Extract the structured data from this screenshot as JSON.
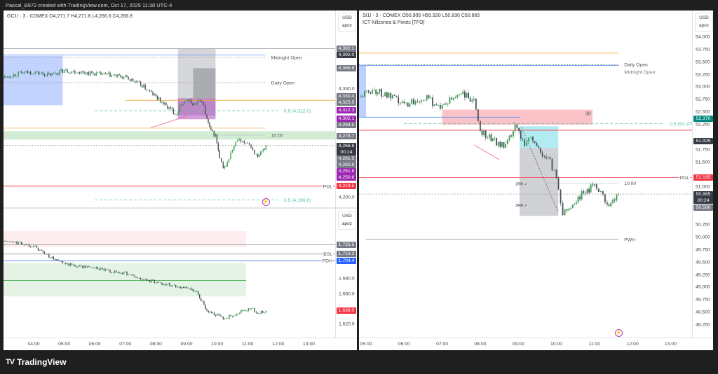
{
  "header": {
    "title": "Pascal_B972 created with TradingView.com, Oct 17, 2025 11:38 UTC-4"
  },
  "footer": {
    "brand": "TradingView"
  },
  "colors": {
    "up": "#2e9b4a",
    "down": "#4a4d57",
    "gray_tag": "#787b86",
    "dark_tag": "#363a45",
    "purple_tag": "#9c27b0",
    "red_tag": "#f23645",
    "blue_tag": "#2962ff",
    "teal_tag": "#00897b"
  },
  "chart_data": [
    {
      "id": "gc",
      "type": "candlestick",
      "timeframe": "3",
      "legend": "GC1! · 3 · COMEX  O4,271.7  H4,271.8  L4,266.6  C4,266.8",
      "currency": "USD",
      "unit": "apoz",
      "ylim": [
        4187.2,
        4441.5
      ],
      "yticks": [
        "4,380.0",
        "4,360.0",
        "4,340.0",
        "4,320.0",
        "4,300.0",
        "4,280.0",
        "4,260.0",
        "4,240.0",
        "4,220.0",
        "4,200.0"
      ],
      "close_series": [
        [
          "03:00",
          4355
        ],
        [
          "03:30",
          4360
        ],
        [
          "04:00",
          4362
        ],
        [
          "04:30",
          4358
        ],
        [
          "05:00",
          4364
        ],
        [
          "05:30",
          4362
        ],
        [
          "06:00",
          4360
        ],
        [
          "06:30",
          4358
        ],
        [
          "07:00",
          4355
        ],
        [
          "07:30",
          4346
        ],
        [
          "08:00",
          4330
        ],
        [
          "08:20",
          4318
        ],
        [
          "08:40",
          4308
        ],
        [
          "08:50",
          4322
        ],
        [
          "09:00",
          4326
        ],
        [
          "09:15",
          4320
        ],
        [
          "09:30",
          4326
        ],
        [
          "09:40",
          4300
        ],
        [
          "09:48",
          4285
        ],
        [
          "09:57",
          4280
        ],
        [
          "10:05",
          4250
        ],
        [
          "10:12",
          4236
        ],
        [
          "10:20",
          4245
        ],
        [
          "10:30",
          4262
        ],
        [
          "10:40",
          4274
        ],
        [
          "10:50",
          4270
        ],
        [
          "11:00",
          4272
        ],
        [
          "11:10",
          4262
        ],
        [
          "11:20",
          4250
        ],
        [
          "11:28",
          4258
        ],
        [
          "11:36",
          4266.8
        ]
      ],
      "boxes": [
        {
          "t1": "03:00",
          "t2": "04:57",
          "p1": 4383,
          "p2": 4319,
          "color": "rgba(41,98,255,0.28)"
        },
        {
          "t1": "08:43",
          "t2": "09:57",
          "p1": 4392,
          "p2": 4306,
          "color": "rgba(120,123,134,0.3)"
        },
        {
          "t1": "09:13",
          "t2": "09:57",
          "p1": 4367,
          "p2": 4328,
          "color": "rgba(90,93,104,0.35)"
        },
        {
          "t1": "08:43",
          "t2": "09:57",
          "p1": 4328,
          "p2": 4301,
          "color": "rgba(156,39,176,0.45)"
        },
        {
          "t1": null,
          "t2": null,
          "p1": 4285.6,
          "p2": 4274.7,
          "color": "rgba(76,175,80,0.25)"
        }
      ],
      "lines": [
        {
          "price": 4392.1,
          "t1": null,
          "t2": null,
          "color": "#9598a1",
          "dash": ""
        },
        {
          "price": 4384,
          "t1": "03:00",
          "t2": "11:35",
          "color": "#5b8ff9",
          "dash": ""
        },
        {
          "price": 4381,
          "t1": "03:00",
          "t2": "11:35",
          "color": "#999",
          "dash": "2,2",
          "label": "Midnight Open",
          "label_color": "#555"
        },
        {
          "price": 4348.3,
          "t1": "03:00",
          "t2": "11:35",
          "color": "#999",
          "dash": "2,2",
          "label": "Daily Open",
          "label_color": "#555"
        },
        {
          "price": 4325.5,
          "t1": "07:00",
          "t2": null,
          "color": "#f7a440",
          "dash": ""
        },
        {
          "price": 4312.0,
          "t1": "06:00",
          "t2": "12:00",
          "color": "#4dbfa8",
          "dash": "4,3",
          "label": "0.5 (4,312.0)",
          "label_color": "#4dbfa8"
        },
        {
          "price": 4289.5,
          "t1": "03:00",
          "t2": "11:35",
          "color": "#f7c27e",
          "dash": ""
        },
        {
          "price": 4280.5,
          "t1": "09:57",
          "t2": "11:35",
          "color": "#999",
          "dash": "2,2",
          "label": "10:00",
          "label_color": "#555"
        },
        {
          "price": 4267,
          "t1": null,
          "t2": null,
          "color": "#999",
          "dash": "2,2"
        },
        {
          "price": 4214.5,
          "t1": null,
          "t2": null,
          "color": "#f23645",
          "dash": "",
          "label": "PDL",
          "label_color": "#555",
          "label_at_axis": true
        },
        {
          "price": 4196.6,
          "t1": "06:00",
          "t2": "12:00",
          "color": "#4dbfa8",
          "dash": "4,3",
          "label": "0.5 (4,196.6)",
          "label_color": "#4dbfa8"
        }
      ],
      "segments": [
        {
          "t1": "07:50",
          "p1": 4290,
          "t2": "09:00",
          "p2": 4305,
          "color": "#f0648a"
        }
      ],
      "tags": [
        {
          "text": "4,392.1",
          "price": 4392.1,
          "color": "gray_tag"
        },
        {
          "text": "4,392.0",
          "price": 4392.0,
          "color": "dark_tag"
        },
        {
          "text": "4,366.8",
          "price": 4366.8,
          "color": "gray_tag"
        },
        {
          "text": "4,330.4",
          "price": 4330.4,
          "color": "gray_tag"
        },
        {
          "text": "4,325.5",
          "price": 4325.5,
          "color": "gray_tag"
        },
        {
          "text": "4,312.3",
          "price": 4312.3,
          "color": "purple_tag"
        },
        {
          "text": "4,302.1",
          "price": 4302.1,
          "color": "purple_tag"
        },
        {
          "text": "4,294.5",
          "price": 4294.5,
          "color": "gray_tag"
        },
        {
          "text": "4,278.7",
          "price": 4278.7,
          "color": "gray_tag"
        },
        {
          "text": "4,266.8",
          "price": 4266.8,
          "color": "dark_tag",
          "countdown": "00:24"
        },
        {
          "text": "4,261.5",
          "price": 4261.5,
          "color": "gray_tag"
        },
        {
          "text": "4,260.8",
          "price": 4260.8,
          "color": "gray_tag"
        },
        {
          "text": "4,251.8",
          "price": 4251.8,
          "color": "purple_tag"
        },
        {
          "text": "4,250.6",
          "price": 4250.6,
          "color": "purple_tag"
        },
        {
          "text": "4,214.5",
          "price": 4214.5,
          "color": "red_tag"
        }
      ],
      "annotations": [],
      "alert_icon_time": "11:35"
    },
    {
      "id": "si-small",
      "type": "candlestick",
      "currency": "USD",
      "unit": "apoz",
      "ylim": [
        1602.2,
        1773.5
      ],
      "yticks": [
        "1,720.0",
        "1,700.0",
        "1,680.0",
        "1,660.0",
        "1,640.0",
        "1,620.0",
        "1,600.0"
      ],
      "close_series": [
        [
          "03:00",
          1730
        ],
        [
          "03:30",
          1728
        ],
        [
          "04:00",
          1724
        ],
        [
          "04:30",
          1710
        ],
        [
          "05:00",
          1700
        ],
        [
          "05:30",
          1697
        ],
        [
          "06:00",
          1695
        ],
        [
          "06:30",
          1690
        ],
        [
          "07:00",
          1688
        ],
        [
          "07:30",
          1680
        ],
        [
          "08:00",
          1676
        ],
        [
          "08:30",
          1672
        ],
        [
          "09:00",
          1668
        ],
        [
          "09:20",
          1662
        ],
        [
          "09:40",
          1638
        ],
        [
          "10:00",
          1632
        ],
        [
          "10:15",
          1627
        ],
        [
          "10:30",
          1632
        ],
        [
          "10:50",
          1638
        ],
        [
          "11:10",
          1640
        ],
        [
          "11:20",
          1634
        ],
        [
          "11:36",
          1638.0
        ]
      ],
      "boxes": [
        {
          "t1": "03:00",
          "t2": "10:57",
          "p1": 1743.9,
          "p2": 1722.6,
          "color": "rgba(242,54,69,0.09)"
        },
        {
          "t1": "03:00",
          "t2": "10:57",
          "p1": 1701.3,
          "p2": 1656.9,
          "color": "rgba(76,175,80,0.15)"
        }
      ],
      "lines": [
        {
          "price": 1725.5,
          "t1": "03:00",
          "t2": null,
          "color": "#9598a1",
          "dash": ""
        },
        {
          "price": 1713.3,
          "t1": "03:00",
          "t2": null,
          "color": "#9598a1",
          "dash": "",
          "label": "BSL",
          "label_color": "#555",
          "label_at_axis": true
        },
        {
          "price": 1704.4,
          "t1": "03:00",
          "t2": null,
          "color": "#2962ff",
          "dash": "",
          "label": "PDH",
          "label_color": "#555",
          "label_at_axis": true
        },
        {
          "price": 1678,
          "t1": "03:00",
          "t2": "10:57",
          "color": "#4caf50",
          "dash": ""
        }
      ],
      "segments": [],
      "tags": [
        {
          "text": "1,725.5",
          "price": 1725.5,
          "color": "gray_tag"
        },
        {
          "text": "1,713.3",
          "price": 1713.3,
          "color": "gray_tag"
        },
        {
          "text": "1,704.4",
          "price": 1704.4,
          "color": "blue_tag"
        },
        {
          "text": "1,638.0",
          "price": 1638.0,
          "color": "red_tag"
        }
      ],
      "annotations": []
    },
    {
      "id": "si",
      "type": "candlestick",
      "timeframe": "3",
      "legend": "SI1! · 3 · COMEX  O50.905  H50.920  L50.830  C50.865",
      "indicator": "ICT Killzones & Pivots [TFO]",
      "currency": "USD",
      "unit": "apoz",
      "ylim": [
        48.0,
        54.53
      ],
      "yticks": [
        "54.000",
        "53.750",
        "53.500",
        "53.250",
        "53.000",
        "52.750",
        "52.500",
        "52.250",
        "52.000",
        "51.750",
        "51.500",
        "51.250",
        "51.000",
        "50.750",
        "50.500",
        "50.250",
        "50.000",
        "49.750",
        "49.500",
        "49.250",
        "49.000",
        "48.750",
        "48.500",
        "48.250",
        "48.000"
      ],
      "close_series": [
        [
          "04:49",
          52.8
        ],
        [
          "05:10",
          52.95
        ],
        [
          "05:30",
          52.85
        ],
        [
          "06:00",
          52.65
        ],
        [
          "06:30",
          52.8
        ],
        [
          "07:00",
          52.6
        ],
        [
          "07:30",
          52.9
        ],
        [
          "07:50",
          52.7
        ],
        [
          "08:00",
          52.15
        ],
        [
          "08:20",
          51.95
        ],
        [
          "08:40",
          51.8
        ],
        [
          "08:55",
          52.2
        ],
        [
          "09:10",
          51.9
        ],
        [
          "09:20",
          52.0
        ],
        [
          "09:35",
          51.7
        ],
        [
          "09:50",
          51.5
        ],
        [
          "10:00",
          51.2
        ],
        [
          "10:10",
          50.5
        ],
        [
          "10:20",
          50.6
        ],
        [
          "10:40",
          50.85
        ],
        [
          "11:00",
          51.05
        ],
        [
          "11:10",
          50.95
        ],
        [
          "11:20",
          50.65
        ],
        [
          "11:38",
          50.865
        ]
      ],
      "boxes": [
        {
          "t1": "07:00",
          "t2": "10:57",
          "p1": 52.55,
          "p2": 52.25,
          "color": "rgba(242,54,69,0.3)",
          "label": "30"
        },
        {
          "t1": "04:49",
          "t2": "05:00",
          "p1": 53.43,
          "p2": 52.4,
          "color": "rgba(41,98,255,0.3)"
        },
        {
          "t1": "09:02",
          "t2": "10:03",
          "p1": 52.22,
          "p2": 51.78,
          "color": "rgba(0,188,212,0.3)"
        },
        {
          "t1": "09:02",
          "t2": "10:03",
          "p1": 51.78,
          "p2": 50.43,
          "color": "rgba(120,123,134,0.35)"
        }
      ],
      "lines": [
        {
          "price": 53.68,
          "t1": "04:49",
          "t2": "11:38",
          "color": "#f7a440",
          "dash": ""
        },
        {
          "price": 53.45,
          "t1": "04:49",
          "t2": "11:38",
          "color": "#555",
          "dash": "2,2",
          "label": "Daily Open",
          "label_color": "#555"
        },
        {
          "price": 53.43,
          "t1": "04:49",
          "t2": "11:38",
          "color": "#5b8ff9",
          "dash": "",
          "label": "Midnight Open",
          "label_color": "#777"
        },
        {
          "price": 52.4,
          "t1": "04:49",
          "t2": "09:02",
          "color": "#5b8ff9",
          "dash": ""
        },
        {
          "price": 52.275,
          "t1": "06:00",
          "t2": "12:50",
          "color": "#4dbfa8",
          "dash": "4,3",
          "label": "0.5 (52.275)",
          "label_color": "#4dbfa8"
        },
        {
          "price": 52.14,
          "t1": null,
          "t2": null,
          "color": "#f23645",
          "dash": ""
        },
        {
          "price": 51.195,
          "t1": null,
          "t2": null,
          "color": "#f23645",
          "dash": "",
          "label": "PDL",
          "label_color": "#555",
          "label_at_axis": true
        },
        {
          "price": 51.08,
          "t1": "09:45",
          "t2": "11:38",
          "color": "#999",
          "dash": "2,2",
          "label": "10:00",
          "label_color": "#555"
        },
        {
          "price": 50.865,
          "t1": null,
          "t2": null,
          "color": "#999",
          "dash": "2,2"
        },
        {
          "price": 49.96,
          "t1": "05:00",
          "t2": "11:38",
          "color": "#9598a1",
          "dash": "",
          "label": "PWH",
          "label_color": "#555"
        }
      ],
      "segments": [
        {
          "t1": "07:50",
          "p1": 51.85,
          "t2": "08:30",
          "p2": 51.55,
          "color": "#f0648a"
        },
        {
          "t1": "09:05",
          "p1": 52.2,
          "t2": "10:03",
          "p2": 50.5,
          "color": "#555"
        }
      ],
      "tags": [
        {
          "text": "52.370",
          "price": 52.37,
          "color": "teal_tag"
        },
        {
          "text": "51.925",
          "price": 51.925,
          "color": "dark_tag"
        },
        {
          "text": "51.195",
          "price": 51.195,
          "color": "red_tag"
        },
        {
          "text": "50.865",
          "price": 50.865,
          "color": "dark_tag",
          "countdown": "00:24"
        },
        {
          "text": "50.590",
          "price": 50.59,
          "color": "gray_tag"
        }
      ],
      "annotations": [
        {
          "text": "2RR ✓",
          "time": "09:00",
          "price": 51.07
        },
        {
          "text": "3RR ✓",
          "time": "09:00",
          "price": 50.64
        }
      ],
      "alert_icon_time": "11:38"
    }
  ],
  "time_axis_left": [
    "04:00",
    "05:00",
    "06:00",
    "07:00",
    "08:00",
    "09:00",
    "10:00",
    "11:00",
    "12:00",
    "13:00"
  ],
  "time_axis_right": [
    "05:00",
    "06:00",
    "07:00",
    "08:00",
    "09:00",
    "10:00",
    "11:00",
    "12:00",
    "13:00"
  ]
}
